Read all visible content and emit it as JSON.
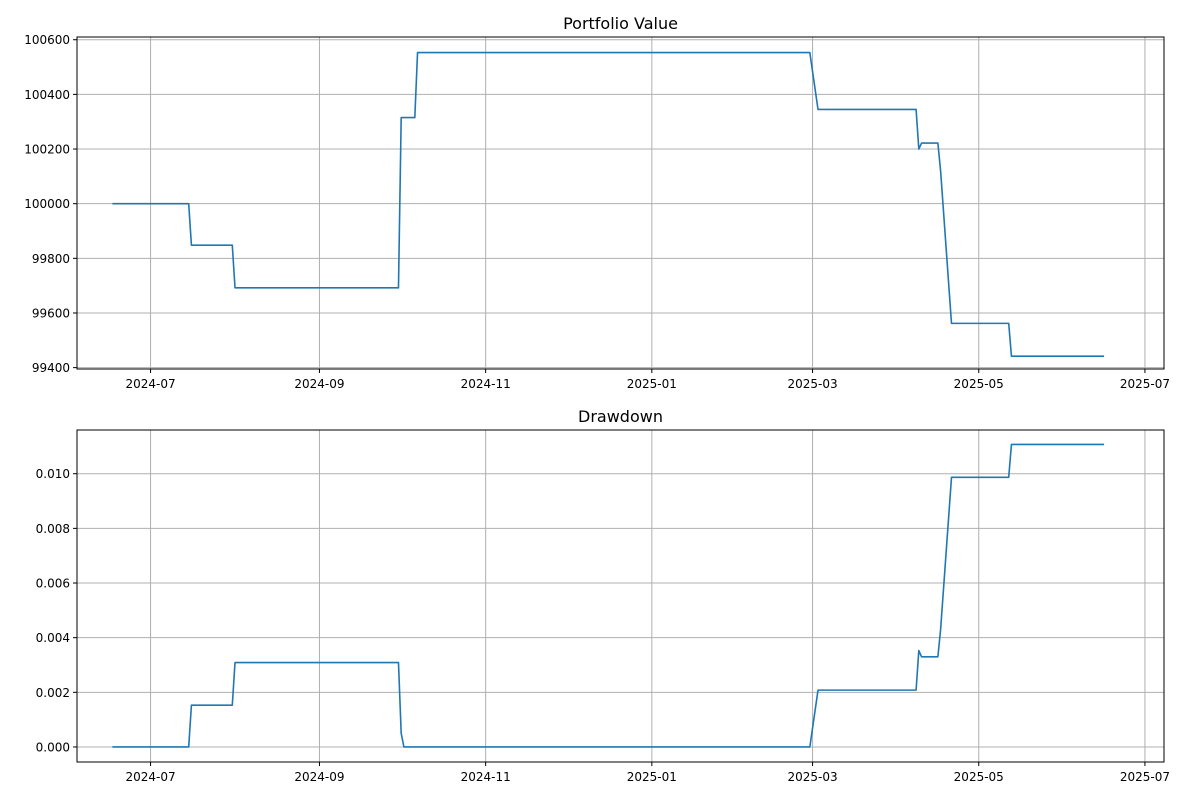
{
  "chart_data": [
    {
      "type": "line",
      "title": "Portfolio Value",
      "xlabel": "",
      "ylabel": "",
      "grid": true,
      "x_ticks": [
        "2024-07",
        "2024-09",
        "2024-11",
        "2025-01",
        "2025-03",
        "2025-05",
        "2025-07"
      ],
      "y_ticks": [
        "99400",
        "99600",
        "99800",
        "100000",
        "100200",
        "100400",
        "100600"
      ],
      "xlim": [
        "2024-06-04",
        "2025-07-08"
      ],
      "ylim": [
        99395,
        100610
      ],
      "series": [
        {
          "color": "#1f77b4",
          "x": [
            "2024-06-17",
            "2024-07-15",
            "2024-07-16",
            "2024-07-31",
            "2024-08-01",
            "2024-09-30",
            "2024-10-01",
            "2024-10-06",
            "2024-10-07",
            "2024-12-15",
            "2025-02-28",
            "2025-03-03",
            "2025-04-08",
            "2025-04-09",
            "2025-04-10",
            "2025-04-16",
            "2025-04-17",
            "2025-04-21",
            "2025-05-12",
            "2025-05-13",
            "2025-06-16"
          ],
          "values": [
            100000,
            100000,
            99848,
            99848,
            99692,
            99692,
            100315,
            100315,
            100553,
            100553,
            100553,
            100345,
            100345,
            100200,
            100222,
            100222,
            100120,
            99562,
            99562,
            99442,
            99442
          ]
        }
      ]
    },
    {
      "type": "line",
      "title": "Drawdown",
      "xlabel": "",
      "ylabel": "",
      "grid": true,
      "x_ticks": [
        "2024-07",
        "2024-09",
        "2024-11",
        "2025-01",
        "2025-03",
        "2025-05",
        "2025-07"
      ],
      "y_ticks": [
        "0.000",
        "0.002",
        "0.004",
        "0.006",
        "0.008",
        "0.010"
      ],
      "xlim": [
        "2024-06-04",
        "2025-07-08"
      ],
      "ylim": [
        -0.00055,
        0.0116
      ],
      "series": [
        {
          "color": "#1f77b4",
          "x": [
            "2024-06-17",
            "2024-07-15",
            "2024-07-16",
            "2024-07-31",
            "2024-08-01",
            "2024-09-30",
            "2024-10-01",
            "2024-10-02",
            "2024-12-15",
            "2025-02-28",
            "2025-03-03",
            "2025-04-08",
            "2025-04-09",
            "2025-04-10",
            "2025-04-16",
            "2025-04-17",
            "2025-04-21",
            "2025-05-12",
            "2025-05-13",
            "2025-06-16"
          ],
          "values": [
            0.0,
            0.0,
            0.00153,
            0.00153,
            0.00309,
            0.00309,
            0.0005,
            0.0,
            0.0,
            0.0,
            0.00208,
            0.00208,
            0.00353,
            0.0033,
            0.0033,
            0.0043,
            0.00987,
            0.00987,
            0.01107,
            0.01107
          ]
        }
      ]
    }
  ]
}
